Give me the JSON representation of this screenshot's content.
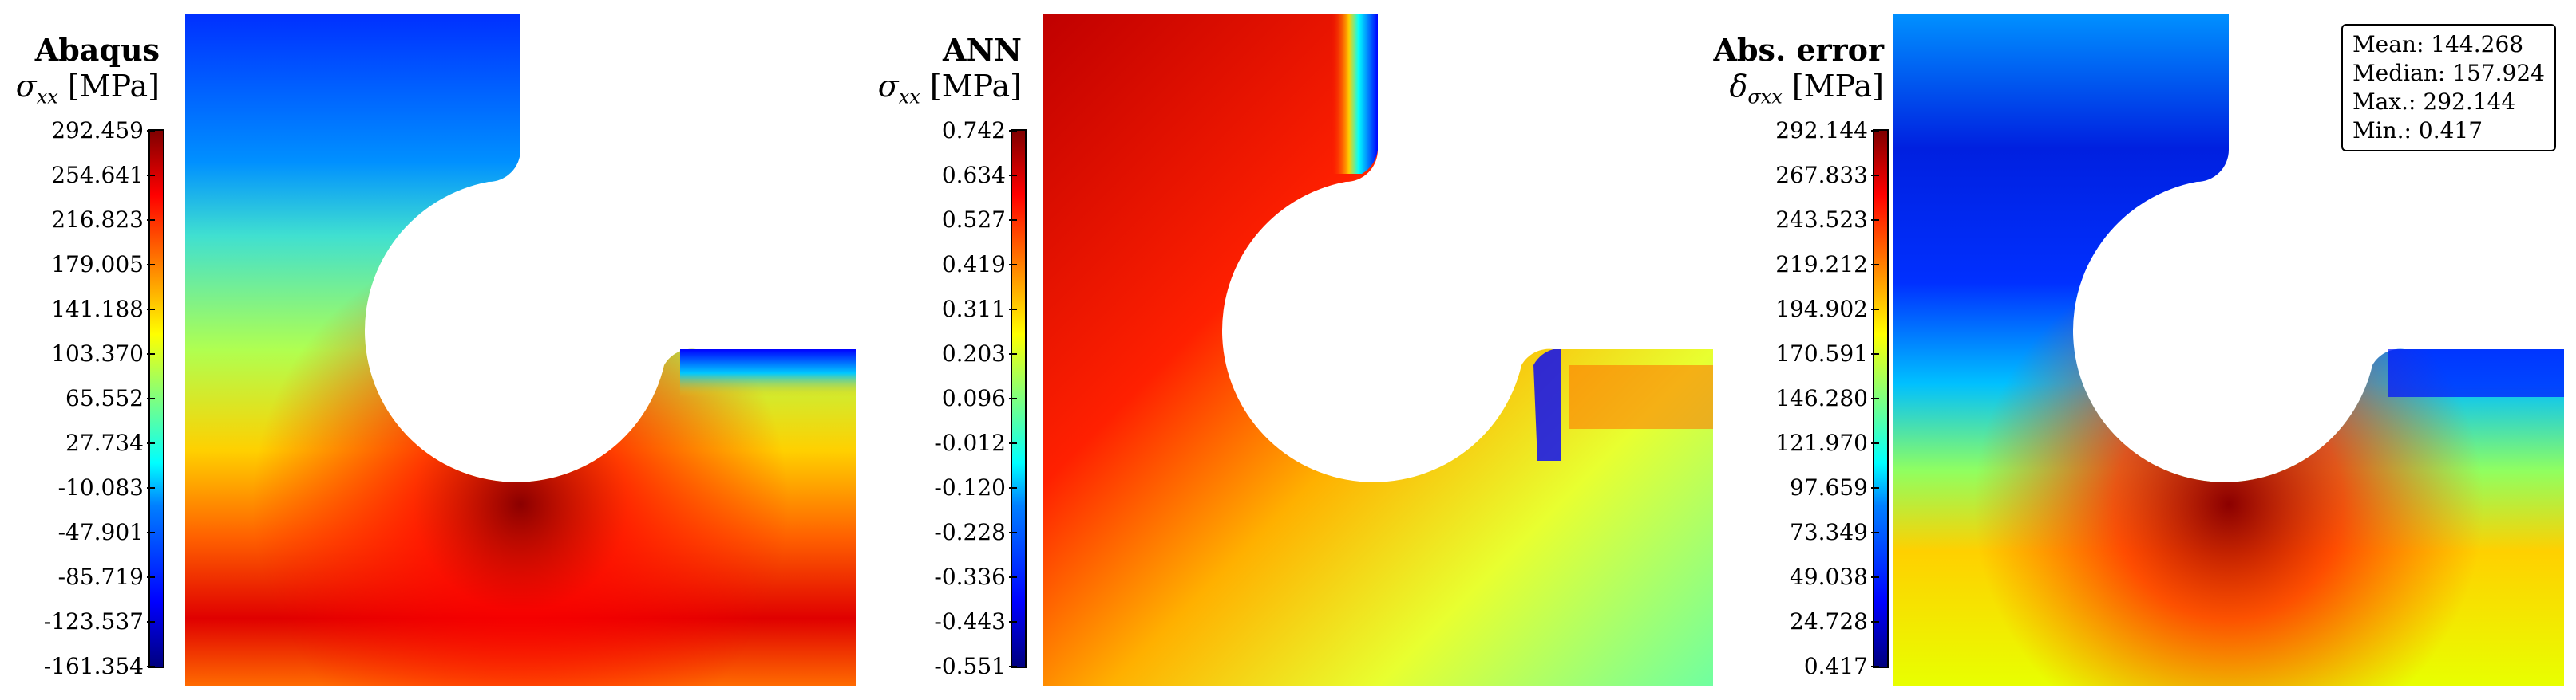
{
  "panels": [
    {
      "title": "Abaqus",
      "symbol": "σ",
      "subscript": "xx",
      "unit": "[MPa]",
      "ticks": [
        "292.459",
        "254.641",
        "216.823",
        "179.005",
        "141.188",
        "103.370",
        "65.552",
        "27.734",
        "-10.083",
        "-47.901",
        "-85.719",
        "-123.537",
        "-161.354"
      ]
    },
    {
      "title": "ANN",
      "symbol": "σ",
      "subscript": "xx",
      "unit": "[MPa]",
      "ticks": [
        "0.742",
        "0.634",
        "0.527",
        "0.419",
        "0.311",
        "0.203",
        "0.096",
        "-0.012",
        "-0.120",
        "-0.228",
        "-0.336",
        "-0.443",
        "-0.551"
      ]
    },
    {
      "title": "Abs. error",
      "symbol": "δ",
      "subscript": "σxx",
      "unit": "[MPa]",
      "ticks": [
        "292.144",
        "267.833",
        "243.523",
        "219.212",
        "194.902",
        "170.591",
        "146.280",
        "121.970",
        "97.659",
        "73.349",
        "49.038",
        "24.728",
        "0.417"
      ]
    }
  ],
  "stats": {
    "mean": "Mean: 144.268",
    "median": "Median: 157.924",
    "max": "Max.: 292.144",
    "min": "Min.: 0.417"
  }
}
